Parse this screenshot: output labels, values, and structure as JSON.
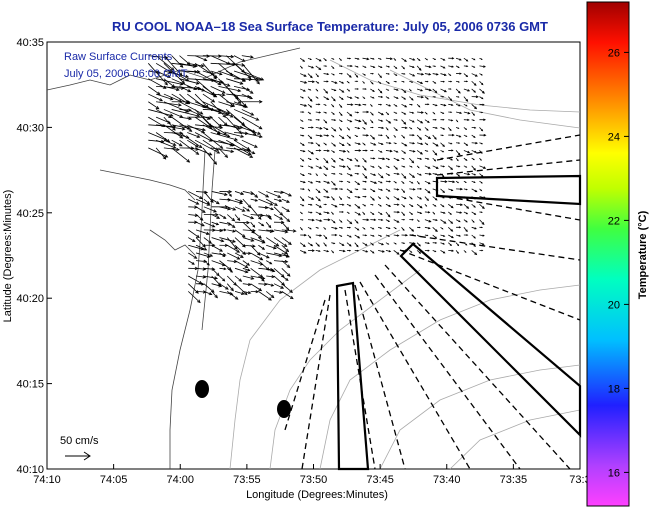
{
  "chart_data": {
    "type": "quiver",
    "title": "RU COOL  NOAA–18  Sea Surface Temperature:  July 05, 2006 0736 GMT",
    "xlabel": "Longitude (Degrees:Minutes)",
    "ylabel": "Latitude (Degrees:Minutes)",
    "x_ticks": [
      "74:10",
      "74:05",
      "74:00",
      "73:55",
      "73:50",
      "73:45",
      "73:40",
      "73:35",
      "73:3"
    ],
    "y_ticks": [
      "40:35",
      "40:30",
      "40:25",
      "40:20",
      "40:15",
      "40:10"
    ],
    "xlim_min": [
      -74.1667,
      -73.5
    ],
    "ylim_min": [
      40.1667,
      40.5833
    ],
    "annotations": [
      "Raw Surface Currents",
      "July 05, 2006 06:00 GMT"
    ],
    "scale_label": "50 cm/s",
    "colorbar": {
      "label": "Temperature (°C)",
      "ticks": [
        "26",
        "24",
        "22",
        "20",
        "18",
        "16"
      ],
      "range": [
        15.2,
        27.2
      ]
    },
    "grid": false,
    "markers": [
      {
        "lon": -73.9767,
        "lat": 40.245
      },
      {
        "lon": -73.9067,
        "lat": 40.225
      }
    ],
    "vector_field": [
      {
        "region": "northwest",
        "lon_range": [
          -74.04,
          -73.92
        ],
        "lat_range": [
          40.48,
          40.57
        ],
        "speed": 45,
        "direction": "southeast"
      },
      {
        "region": "central",
        "lon_range": [
          -73.99,
          -73.87
        ],
        "lat_range": [
          40.34,
          40.44
        ],
        "speed": 25,
        "direction": "southeast"
      },
      {
        "region": "east",
        "lon_range": [
          -73.85,
          -73.62
        ],
        "lat_range": [
          40.38,
          40.57
        ],
        "speed": 10,
        "direction": "southeast"
      }
    ]
  }
}
